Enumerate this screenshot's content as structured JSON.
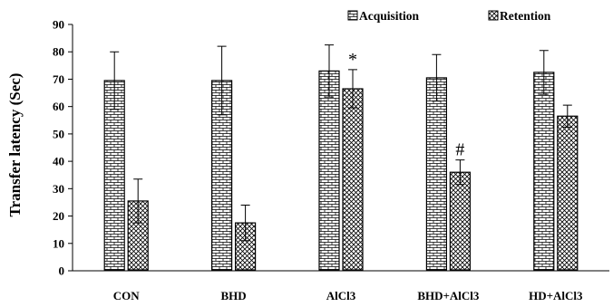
{
  "chart_data": {
    "type": "bar",
    "categories": [
      "CON",
      "BHD",
      "AlCl3",
      "BHD+AlCl3",
      "HD+AlCl3"
    ],
    "series": [
      {
        "name": "Acquisition",
        "pattern": "brick",
        "values": [
          69.5,
          69.5,
          73,
          70.5,
          72.5
        ],
        "errors": [
          10.5,
          12.5,
          9.5,
          8.5,
          8
        ]
      },
      {
        "name": "Retention",
        "pattern": "crosshatch",
        "values": [
          25.5,
          17.5,
          66.5,
          36,
          56.5
        ],
        "errors": [
          8,
          6.5,
          7,
          4.5,
          4
        ]
      }
    ],
    "annotations": [
      {
        "category": "AlCl3",
        "series": "Retention",
        "text": "*"
      },
      {
        "category": "BHD+AlCl3",
        "series": "Retention",
        "text": "#"
      }
    ],
    "ylabel": "Transfer latency (Sec)",
    "xlabel": "",
    "ylim": [
      0,
      90
    ],
    "yticks": [
      0,
      10,
      20,
      30,
      40,
      50,
      60,
      70,
      80,
      90
    ],
    "legend_position": "top-right",
    "grid": false,
    "colors": {
      "bar_fill": "#ffffff",
      "bar_stroke": "#000000",
      "pattern": "#000000"
    }
  }
}
